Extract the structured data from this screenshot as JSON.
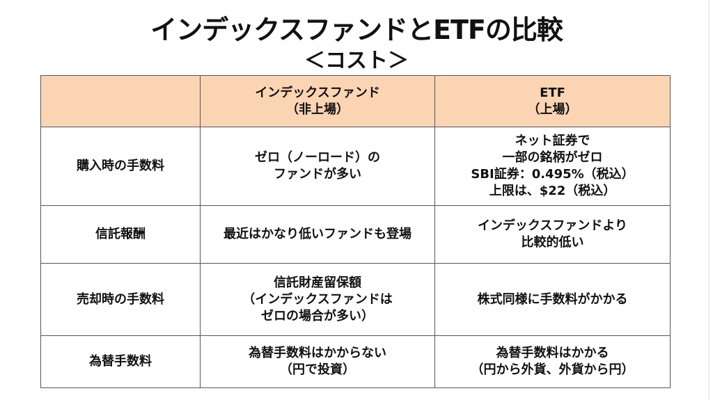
{
  "title": "インデックスファンドとETFの比較",
  "subtitle": "＜コスト＞",
  "colors": {
    "header_bg": "#fbd4b4",
    "border": "#555555"
  },
  "table": {
    "headers": [
      "",
      "インデックスファンド\n（非上場）",
      "ETF\n（上場）"
    ],
    "rows": [
      [
        "購入時の手数料",
        "ゼロ（ノーロード）の\nファンドが多い",
        "ネット証券で\n一部の銘柄がゼロ\nSBI証券：0.495%（税込）\n上限は、$22（税込）"
      ],
      [
        "信託報酬",
        "最近はかなり低いファンドも登場",
        "インデックスファンドより\n比較的低い"
      ],
      [
        "売却時の手数料",
        "信託財産留保額\n（インデックスファンドは\nゼロの場合が多い）",
        "株式同様に手数料がかかる"
      ],
      [
        "為替手数料",
        "為替手数料はかからない\n（円で投資）",
        "為替手数料はかかる\n（円から外貨、外貨から円）"
      ]
    ]
  }
}
